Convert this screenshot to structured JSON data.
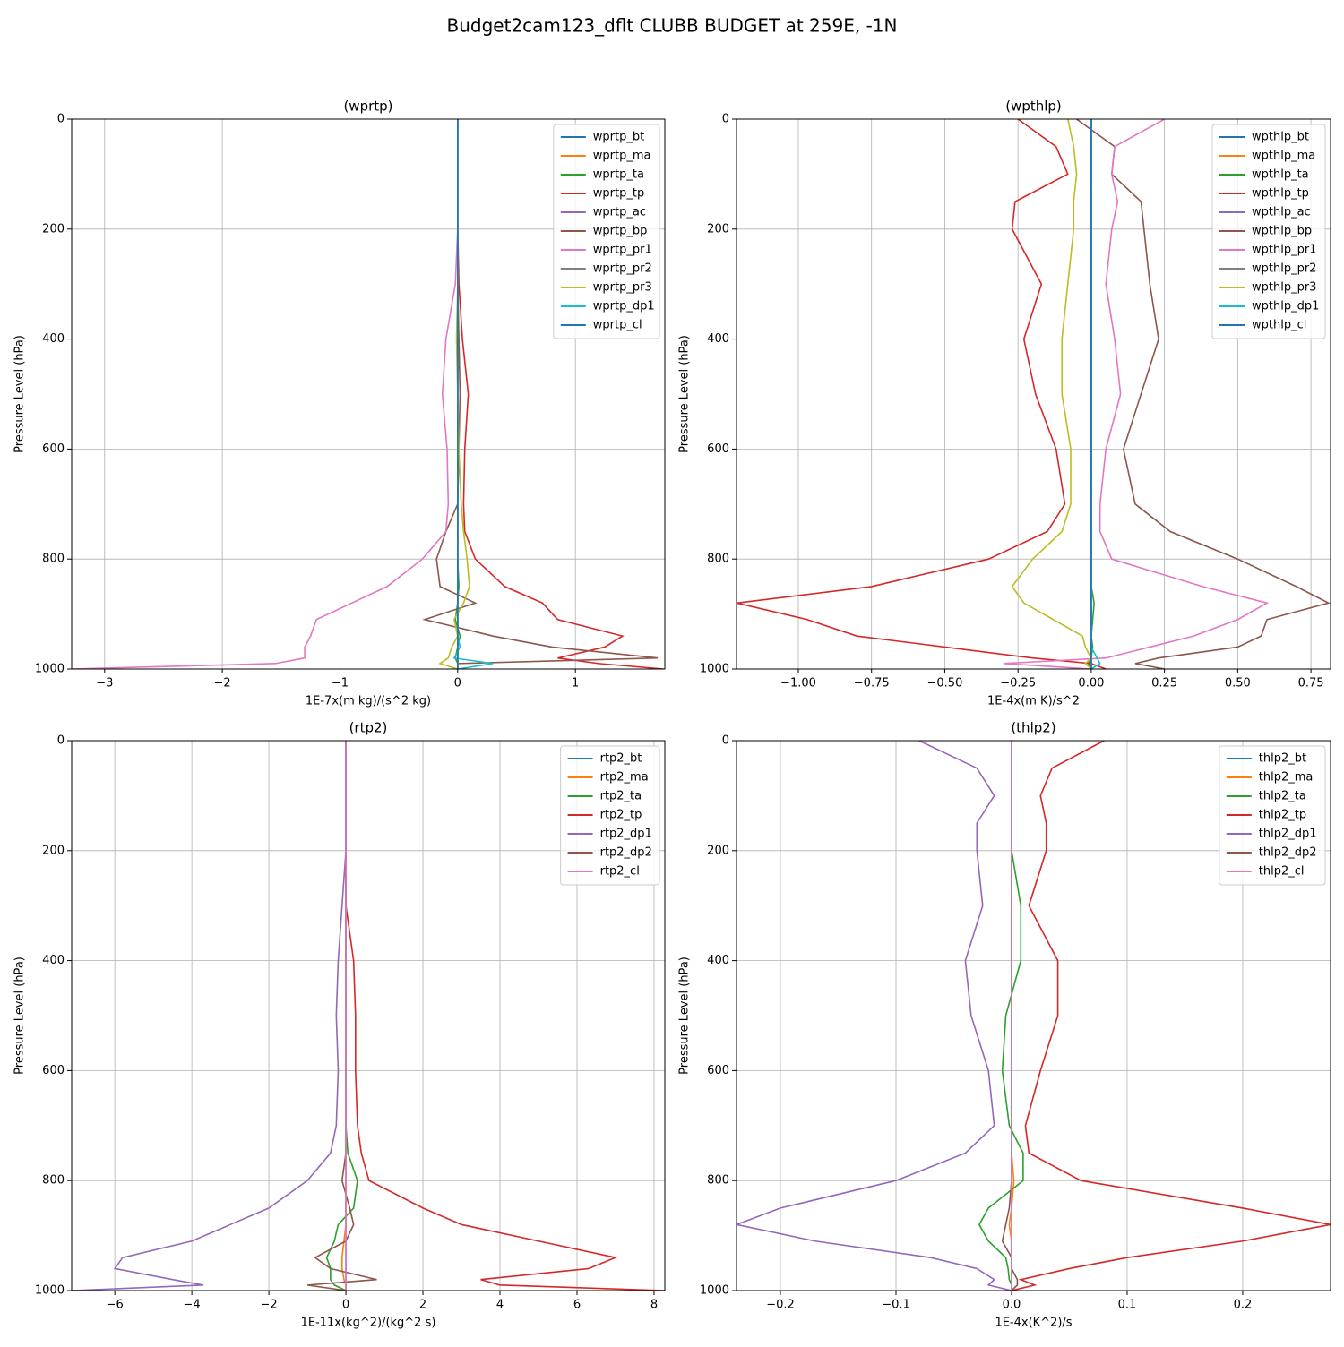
{
  "title": "Budget2cam123_dflt CLUBB BUDGET at 259E, -1N",
  "chart_data": [
    {
      "type": "line",
      "title": "(wprtp)",
      "xlabel": "1E-7x(m kg)/(s^2 kg)",
      "ylabel": "Pressure Level (hPa)",
      "grid": true,
      "legend": "upper right",
      "xlim": [
        -3.28,
        1.76
      ],
      "xticks": [
        {
          "value": -3,
          "label": "−3"
        },
        {
          "value": -2,
          "label": "−2"
        },
        {
          "value": -1,
          "label": "−1"
        },
        0,
        1
      ],
      "ylim": [
        1000,
        0
      ],
      "yticks": [
        0,
        200,
        400,
        600,
        800,
        1000
      ],
      "y": [
        0,
        50,
        100,
        150,
        200,
        300,
        400,
        500,
        600,
        700,
        750,
        800,
        850,
        880,
        910,
        940,
        960,
        980,
        990,
        1000
      ],
      "series": [
        {
          "name": "wprtp_bt",
          "color": "#1f77b4",
          "values": [
            0,
            0,
            0,
            0,
            0,
            0,
            0,
            0,
            0,
            0,
            0,
            0,
            0,
            0,
            0,
            0,
            0,
            0,
            0,
            0
          ]
        },
        {
          "name": "wprtp_ma",
          "color": "#ff7f0e",
          "values": [
            0,
            0,
            0,
            0,
            0,
            0,
            0,
            0,
            0,
            0,
            0,
            0,
            0,
            0,
            0,
            0,
            0,
            0,
            0,
            0
          ]
        },
        {
          "name": "wprtp_ta",
          "color": "#2ca02c",
          "values": [
            0,
            0,
            0,
            0,
            0,
            0,
            0,
            0,
            0,
            0,
            0,
            0,
            0.01,
            0,
            -0.02,
            0.02,
            0,
            -0.02,
            0,
            0
          ]
        },
        {
          "name": "wprtp_tp",
          "color": "#d62728",
          "values": [
            0,
            0,
            0,
            0,
            0,
            0.01,
            0.04,
            0.09,
            0.06,
            0.05,
            0.06,
            0.15,
            0.4,
            0.72,
            0.85,
            1.4,
            1.25,
            0.85,
            1.2,
            1.75
          ]
        },
        {
          "name": "wprtp_ac",
          "color": "#9467bd",
          "values": [
            0,
            0,
            0,
            0,
            0,
            0,
            0,
            0,
            0,
            0,
            0,
            0,
            0,
            0,
            0,
            0,
            0,
            0,
            0,
            0
          ]
        },
        {
          "name": "wprtp_bp",
          "color": "#8c564b",
          "values": [
            0,
            0,
            0,
            0,
            0,
            0,
            0.01,
            0.02,
            0.01,
            0,
            -0.1,
            -0.18,
            -0.15,
            0.15,
            -0.28,
            0.3,
            0.8,
            1.7,
            0,
            0
          ]
        },
        {
          "name": "wprtp_pr1",
          "color": "#e377c2",
          "values": [
            0,
            0,
            0,
            0,
            0,
            -0.02,
            -0.1,
            -0.13,
            -0.09,
            -0.08,
            -0.1,
            -0.3,
            -0.6,
            -0.9,
            -1.2,
            -1.25,
            -1.3,
            -1.3,
            -1.55,
            -3.28
          ]
        },
        {
          "name": "wprtp_pr2",
          "color": "#7f7f7f",
          "values": [
            0,
            0,
            0,
            0,
            0,
            0,
            0,
            0,
            0,
            0,
            0,
            0,
            0,
            0,
            0,
            0,
            0,
            0,
            0,
            0
          ]
        },
        {
          "name": "wprtp_pr3",
          "color": "#bcbd22",
          "values": [
            0,
            0,
            0,
            0,
            0,
            0,
            -0.01,
            0,
            0.01,
            0.03,
            0.05,
            0.08,
            0.1,
            0.05,
            -0.03,
            0,
            -0.05,
            -0.08,
            -0.15,
            0
          ]
        },
        {
          "name": "wprtp_dp1",
          "color": "#17becf",
          "values": [
            0,
            0,
            0,
            0,
            0,
            0,
            0,
            0,
            0,
            0,
            0,
            0,
            0,
            0,
            0,
            0,
            0.02,
            -0.03,
            0.3,
            0
          ]
        },
        {
          "name": "wprtp_cl",
          "color": "#1f77b4",
          "values": [
            0,
            0,
            0,
            0,
            0,
            0,
            0,
            0,
            0,
            0,
            0,
            0,
            0,
            0,
            0,
            0,
            0,
            0,
            0,
            0
          ]
        }
      ]
    },
    {
      "type": "line",
      "title": "(wpthlp)",
      "xlabel": "1E-4x(m K)/s^2",
      "ylabel": "Pressure Level (hPa)",
      "grid": true,
      "legend": "upper right",
      "xlim": [
        -1.211,
        0.817
      ],
      "xticks": [
        {
          "value": -1,
          "label": "−1.00"
        },
        {
          "value": -0.75,
          "label": "−0.75"
        },
        {
          "value": -0.5,
          "label": "−0.50"
        },
        {
          "value": -0.25,
          "label": "−0.25"
        },
        {
          "value": 0,
          "label": "0.00"
        },
        0.25,
        {
          "value": 0.5,
          "label": "0.50"
        },
        0.75
      ],
      "ylim": [
        1000,
        0
      ],
      "yticks": [
        0,
        200,
        400,
        600,
        800,
        1000
      ],
      "y": [
        0,
        50,
        100,
        150,
        200,
        300,
        400,
        500,
        600,
        700,
        750,
        800,
        850,
        880,
        910,
        940,
        960,
        980,
        990,
        1000
      ],
      "series": [
        {
          "name": "wpthlp_bt",
          "color": "#1f77b4",
          "values": [
            0,
            0,
            0,
            0,
            0,
            0,
            0,
            0,
            0,
            0,
            0,
            0,
            0,
            0,
            0,
            0,
            0,
            0,
            0,
            0
          ]
        },
        {
          "name": "wpthlp_ma",
          "color": "#ff7f0e",
          "values": [
            0,
            0,
            0,
            0,
            0,
            0,
            0,
            0,
            0,
            0,
            0,
            0,
            0,
            0,
            0,
            0,
            0,
            0,
            0,
            0
          ]
        },
        {
          "name": "wpthlp_ta",
          "color": "#2ca02c",
          "values": [
            0,
            0,
            0,
            0,
            0,
            0,
            0,
            0,
            0,
            0,
            0,
            0,
            0,
            0.01,
            0.005,
            0,
            0.005,
            0,
            -0.01,
            0
          ]
        },
        {
          "name": "wpthlp_tp",
          "color": "#d62728",
          "values": [
            -0.25,
            -0.12,
            -0.08,
            -0.26,
            -0.27,
            -0.17,
            -0.23,
            -0.19,
            -0.12,
            -0.09,
            -0.15,
            -0.35,
            -0.75,
            -1.21,
            -0.97,
            -0.8,
            -0.5,
            -0.2,
            0,
            0.05
          ]
        },
        {
          "name": "wpthlp_ac",
          "color": "#9467bd",
          "values": [
            0,
            0,
            0,
            0,
            0,
            0,
            0,
            0,
            0,
            0,
            0,
            0,
            0,
            0,
            0,
            0,
            0,
            0,
            0,
            0
          ]
        },
        {
          "name": "wpthlp_bp",
          "color": "#8c564b",
          "values": [
            -0.05,
            0.08,
            0.07,
            0.17,
            0.18,
            0.2,
            0.23,
            0.17,
            0.11,
            0.15,
            0.27,
            0.5,
            0.7,
            0.81,
            0.6,
            0.58,
            0.5,
            0.23,
            0.15,
            0.25
          ]
        },
        {
          "name": "wpthlp_pr1",
          "color": "#e377c2",
          "values": [
            0.25,
            0.08,
            0.07,
            0.09,
            0.07,
            0.05,
            0.08,
            0.1,
            0.05,
            0.03,
            0.03,
            0.07,
            0.38,
            0.6,
            0.5,
            0.35,
            0.2,
            0.05,
            -0.3,
            0
          ]
        },
        {
          "name": "wpthlp_pr2",
          "color": "#7f7f7f",
          "values": [
            0,
            0,
            0,
            0,
            0,
            0,
            0,
            0,
            0,
            0,
            0,
            0,
            0,
            0,
            0,
            0,
            0,
            0,
            0,
            0
          ]
        },
        {
          "name": "wpthlp_pr3",
          "color": "#bcbd22",
          "values": [
            -0.08,
            -0.06,
            -0.05,
            -0.06,
            -0.06,
            -0.08,
            -0.1,
            -0.1,
            -0.07,
            -0.07,
            -0.1,
            -0.2,
            -0.27,
            -0.23,
            -0.13,
            -0.03,
            -0.02,
            0,
            -0.02,
            0
          ]
        },
        {
          "name": "wpthlp_dp1",
          "color": "#17becf",
          "values": [
            0,
            0,
            0,
            0,
            0,
            0,
            0,
            0,
            0,
            0,
            0,
            0,
            0,
            0,
            0,
            0,
            0,
            0.02,
            0.03,
            0
          ]
        },
        {
          "name": "wpthlp_cl",
          "color": "#1f77b4",
          "values": [
            0,
            0,
            0,
            0,
            0,
            0,
            0,
            0,
            0,
            0,
            0,
            0,
            0,
            0,
            0,
            0,
            0,
            0,
            0,
            0
          ]
        }
      ]
    },
    {
      "type": "line",
      "title": "(rtp2)",
      "xlabel": "1E-11x(kg^2)/(kg^2 s)",
      "ylabel": "Pressure Level (hPa)",
      "grid": true,
      "legend": "upper right",
      "xlim": [
        -7.12,
        8.28
      ],
      "xticks": [
        {
          "value": -6,
          "label": "−6"
        },
        {
          "value": -4,
          "label": "−4"
        },
        {
          "value": -2,
          "label": "−2"
        },
        0,
        2,
        4,
        6,
        8
      ],
      "ylim": [
        1000,
        0
      ],
      "yticks": [
        0,
        200,
        400,
        600,
        800,
        1000
      ],
      "y": [
        0,
        50,
        100,
        150,
        200,
        300,
        400,
        500,
        600,
        700,
        750,
        800,
        850,
        880,
        910,
        940,
        960,
        980,
        990,
        1000
      ],
      "series": [
        {
          "name": "rtp2_bt",
          "color": "#1f77b4",
          "values": [
            0,
            0,
            0,
            0,
            0,
            0,
            0,
            0,
            0,
            0,
            0,
            0,
            0,
            0,
            0,
            0,
            0,
            0,
            0,
            0
          ]
        },
        {
          "name": "rtp2_ma",
          "color": "#ff7f0e",
          "values": [
            0,
            0,
            0,
            0,
            0,
            0,
            0,
            0,
            0,
            0,
            0,
            0,
            0,
            0,
            -0.05,
            -0.1,
            -0.1,
            -0.05,
            0,
            0
          ]
        },
        {
          "name": "rtp2_ta",
          "color": "#2ca02c",
          "values": [
            0,
            0,
            0,
            0,
            0,
            0,
            0,
            0,
            0,
            0,
            0.05,
            0.3,
            0.2,
            -0.2,
            -0.3,
            -0.5,
            -0.4,
            -0.4,
            -0.3,
            0
          ]
        },
        {
          "name": "rtp2_tp",
          "color": "#d62728",
          "values": [
            0,
            0,
            0,
            0,
            0,
            0,
            0.2,
            0.25,
            0.25,
            0.3,
            0.4,
            0.6,
            2,
            3,
            5,
            7,
            6.3,
            3.5,
            4,
            8.28
          ]
        },
        {
          "name": "rtp2_dp1",
          "color": "#9467bd",
          "values": [
            0,
            0,
            0,
            0,
            0,
            -0.1,
            -0.2,
            -0.25,
            -0.2,
            -0.25,
            -0.4,
            -1,
            -2,
            -3,
            -4,
            -5.8,
            -6,
            -4.5,
            -3.7,
            -7.12
          ]
        },
        {
          "name": "rtp2_dp2",
          "color": "#8c564b",
          "values": [
            0,
            0,
            0,
            0,
            0,
            0,
            0,
            0,
            0,
            0,
            0,
            -0.1,
            0.1,
            0.2,
            0,
            -0.8,
            -0.4,
            0.8,
            -1,
            0
          ]
        },
        {
          "name": "rtp2_cl",
          "color": "#e377c2",
          "values": [
            0,
            0,
            0,
            0,
            0,
            0,
            0,
            0,
            0,
            0,
            0,
            0,
            0,
            0,
            0,
            0,
            0,
            0,
            0,
            0
          ]
        }
      ]
    },
    {
      "type": "line",
      "title": "(thlp2)",
      "xlabel": "1E-4x(K^2)/s",
      "ylabel": "Pressure Level (hPa)",
      "grid": true,
      "legend": "upper right",
      "xlim": [
        -0.238,
        0.276
      ],
      "xticks": [
        {
          "value": -0.2,
          "label": "−0.2"
        },
        {
          "value": -0.1,
          "label": "−0.1"
        },
        {
          "value": 0,
          "label": "0.0"
        },
        0.1,
        0.2
      ],
      "ylim": [
        1000,
        0
      ],
      "yticks": [
        0,
        200,
        400,
        600,
        800,
        1000
      ],
      "y": [
        0,
        50,
        100,
        150,
        200,
        300,
        400,
        500,
        600,
        700,
        750,
        800,
        850,
        880,
        910,
        940,
        960,
        980,
        990,
        1000
      ],
      "series": [
        {
          "name": "thlp2_bt",
          "color": "#1f77b4",
          "values": [
            0,
            0,
            0,
            0,
            0,
            0,
            0,
            0,
            0,
            0,
            0,
            0,
            0,
            0,
            0,
            0,
            0,
            0,
            0,
            0
          ]
        },
        {
          "name": "thlp2_ma",
          "color": "#ff7f0e",
          "values": [
            0,
            0,
            0,
            0,
            0,
            0,
            0,
            0,
            0,
            0,
            0,
            0.002,
            0,
            -0.002,
            0,
            0,
            0,
            0,
            0,
            0
          ]
        },
        {
          "name": "thlp2_ta",
          "color": "#2ca02c",
          "values": [
            0,
            0,
            0,
            0,
            0,
            0.008,
            0.008,
            -0.005,
            -0.008,
            -0.002,
            0.01,
            0.01,
            -0.02,
            -0.028,
            -0.02,
            -0.005,
            -0.003,
            -0.002,
            0,
            0
          ]
        },
        {
          "name": "thlp2_tp",
          "color": "#d62728",
          "values": [
            0.08,
            0.035,
            0.025,
            0.03,
            0.03,
            0.015,
            0.04,
            0.04,
            0.025,
            0.012,
            0.015,
            0.06,
            0.2,
            0.276,
            0.2,
            0.1,
            0.05,
            0.008,
            0.02,
            0
          ]
        },
        {
          "name": "thlp2_dp1",
          "color": "#9467bd",
          "values": [
            -0.08,
            -0.03,
            -0.015,
            -0.03,
            -0.03,
            -0.025,
            -0.04,
            -0.035,
            -0.02,
            -0.015,
            -0.04,
            -0.1,
            -0.2,
            -0.238,
            -0.17,
            -0.07,
            -0.03,
            -0.015,
            -0.02,
            0
          ]
        },
        {
          "name": "thlp2_dp2",
          "color": "#8c564b",
          "values": [
            0,
            0,
            0,
            0,
            0,
            0,
            0,
            0,
            0,
            0,
            0,
            0,
            -0.002,
            -0.005,
            -0.008,
            0,
            0,
            0.005,
            0.005,
            0
          ]
        },
        {
          "name": "thlp2_cl",
          "color": "#e377c2",
          "values": [
            0,
            0,
            0,
            0,
            0,
            0,
            0,
            0,
            0,
            0,
            0,
            0,
            0,
            0,
            0,
            0,
            0,
            0,
            0,
            0
          ]
        }
      ]
    }
  ]
}
